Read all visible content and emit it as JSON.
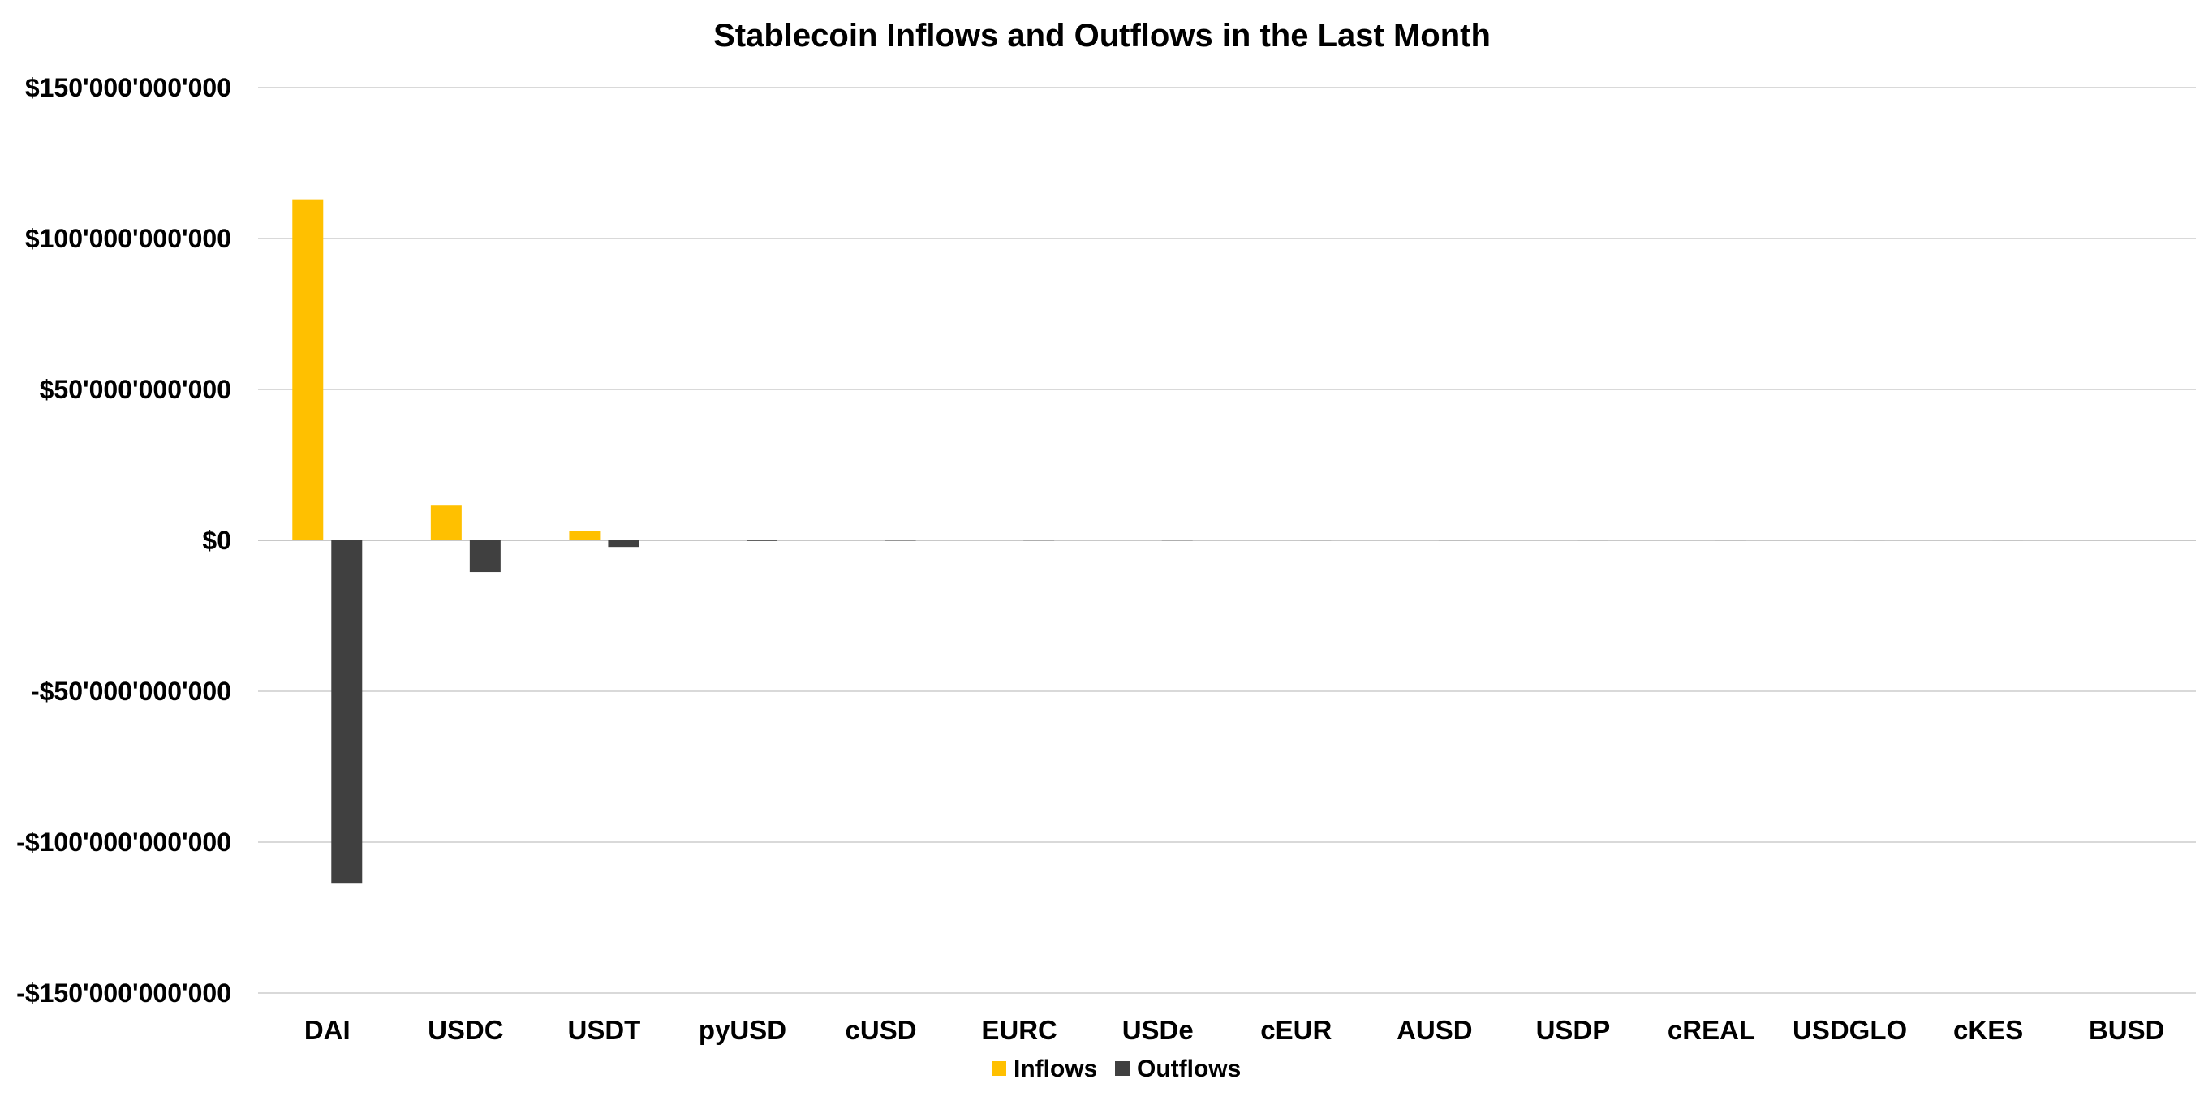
{
  "chart_data": {
    "type": "bar",
    "title": "Stablecoin Inflows and Outflows in the Last Month",
    "xlabel": "",
    "ylabel": "",
    "categories": [
      "DAI",
      "USDC",
      "USDT",
      "pyUSD",
      "cUSD",
      "EURC",
      "USDe",
      "cEUR",
      "AUSD",
      "USDP",
      "cREAL",
      "USDGLO",
      "cKES",
      "BUSD"
    ],
    "series": [
      {
        "name": "Inflows",
        "color": "#FFC000",
        "values": [
          113000000000,
          11500000000,
          3000000000,
          200000000,
          100000000,
          50000000,
          50000000,
          20000000,
          20000000,
          10000000,
          10000000,
          5000000,
          5000000,
          1000000
        ]
      },
      {
        "name": "Outflows",
        "color": "#404040",
        "values": [
          -113500000000,
          -10500000000,
          -2200000000,
          -200000000,
          -100000000,
          -50000000,
          -50000000,
          -20000000,
          -20000000,
          -10000000,
          -10000000,
          -5000000,
          -5000000,
          -1000000
        ]
      }
    ],
    "ylim": [
      -150000000000,
      150000000000
    ],
    "yticks": [
      150000000000,
      100000000000,
      50000000000,
      0,
      -50000000000,
      -100000000000,
      -150000000000
    ],
    "ytick_labels": [
      "$150'000'000'000",
      "$100'000'000'000",
      "$50'000'000'000",
      "$0",
      "-$50'000'000'000",
      "-$100'000'000'000",
      "-$150'000'000'000"
    ],
    "grid": true,
    "legend_position": "bottom-center"
  }
}
